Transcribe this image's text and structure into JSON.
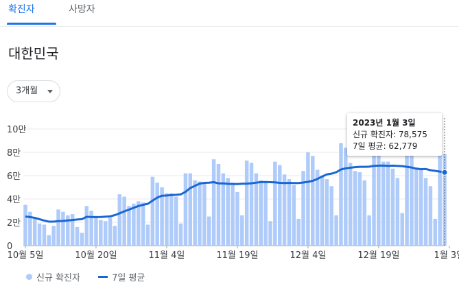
{
  "tabs": [
    {
      "label": "확진자"
    },
    {
      "label": "사망자"
    }
  ],
  "region": "대한민국",
  "range_selector": {
    "label": "3개월"
  },
  "tooltip": {
    "date": "2023년 1월 3일",
    "new_cases": "신규 확진자: 78,575",
    "avg": "7일 평균: 62,779"
  },
  "legend": {
    "cases": "신규 확진자",
    "avg": "7일 평균"
  },
  "colors": {
    "bar": "#aecbfa",
    "line": "#1967d2",
    "accent": "#1a73e8"
  },
  "chart_data": {
    "type": "bar",
    "yticks": [
      "0",
      "2만",
      "4만",
      "6만",
      "8만",
      "10만"
    ],
    "ylim": [
      0,
      100000
    ],
    "xticks": [
      {
        "label": "10월 5일",
        "index": 0
      },
      {
        "label": "10월 20일",
        "index": 15
      },
      {
        "label": "11월 4일",
        "index": 30
      },
      {
        "label": "11월 19일",
        "index": 45
      },
      {
        "label": "12월 4일",
        "index": 60
      },
      {
        "label": "12월 19일",
        "index": 75
      },
      {
        "label": "1월 3일",
        "index": 90
      }
    ],
    "series": [
      {
        "name": "신규 확진자",
        "type": "bar",
        "values": [
          35000,
          29000,
          23000,
          19000,
          18000,
          9000,
          17000,
          31000,
          29000,
          26000,
          27000,
          16000,
          11000,
          34000,
          30000,
          24000,
          22000,
          21000,
          24000,
          17000,
          44000,
          42000,
          34000,
          36000,
          38000,
          37000,
          18000,
          59000,
          54000,
          50000,
          45000,
          45000,
          42000,
          19000,
          62000,
          62000,
          56000,
          55000,
          54000,
          25000,
          74000,
          70000,
          62000,
          58000,
          54000,
          46000,
          26000,
          73000,
          71000,
          62000,
          56000,
          54000,
          21000,
          72000,
          69000,
          61000,
          57000,
          52000,
          23000,
          64000,
          80000,
          77000,
          65000,
          60000,
          57000,
          51000,
          26000,
          88000,
          84000,
          71000,
          64000,
          63000,
          56000,
          26000,
          88000,
          86000,
          72000,
          72000,
          66000,
          58000,
          28000,
          84000,
          84000,
          67000,
          65000,
          58000,
          51000,
          23000,
          86000,
          78575
        ]
      },
      {
        "name": "7일 평균",
        "type": "line",
        "values": [
          25000,
          24500,
          23800,
          22700,
          21500,
          20600,
          20600,
          21000,
          21200,
          21600,
          22000,
          22400,
          22700,
          24700,
          24600,
          24500,
          24600,
          24900,
          25100,
          26200,
          27700,
          29400,
          30900,
          32500,
          34000,
          35000,
          35900,
          38600,
          41200,
          42800,
          43000,
          43300,
          43600,
          44000,
          46100,
          49400,
          51300,
          53200,
          53800,
          54000,
          54400,
          53400,
          53400,
          53000,
          52900,
          52800,
          53100,
          53200,
          53500,
          54000,
          54500,
          54600,
          54400,
          54300,
          53800,
          53700,
          53800,
          53700,
          53700,
          54100,
          54700,
          55600,
          57200,
          59300,
          61100,
          61700,
          63000,
          65300,
          66300,
          66800,
          67300,
          67600,
          67600,
          67700,
          68400,
          68600,
          68700,
          68400,
          68600,
          68400,
          68200,
          67600,
          67000,
          66000,
          65500,
          65700,
          64700,
          64100,
          63500,
          62779
        ]
      }
    ]
  }
}
